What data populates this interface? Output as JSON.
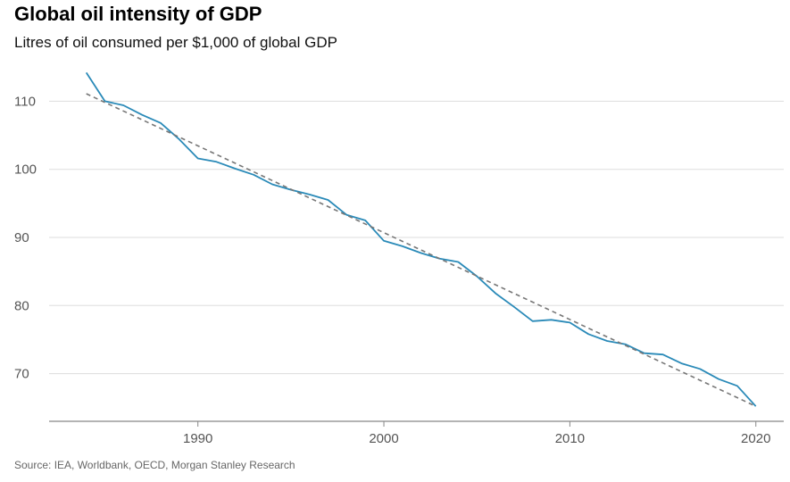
{
  "title": "Global oil intensity of GDP",
  "subtitle": "Litres of oil consumed per $1,000 of global GDP",
  "source": "Source: IEA, Worldbank, OECD, Morgan Stanley Research",
  "colors": {
    "series": "#2a8ab8",
    "trend": "#777777",
    "grid": "#dddddd",
    "axis": "#888888",
    "tick_text": "#555555"
  },
  "chart_data": {
    "type": "line",
    "title": "Global oil intensity of GDP",
    "subtitle": "Litres of oil consumed per $1,000 of global GDP",
    "xlabel": "",
    "ylabel": "",
    "xlim": [
      1982,
      2021.5
    ],
    "ylim": [
      63,
      117
    ],
    "x_ticks": [
      1990,
      2000,
      2010,
      2020
    ],
    "y_ticks": [
      70,
      80,
      90,
      100,
      110
    ],
    "grid": "horizontal",
    "legend": "none",
    "series": [
      {
        "style": "solid",
        "x": [
          1984,
          1985,
          1986,
          1987,
          1988,
          1989,
          1990,
          1991,
          1992,
          1993,
          1994,
          1995,
          1996,
          1997,
          1998,
          1999,
          2000,
          2001,
          2002,
          2003,
          2004,
          2005,
          2006,
          2007,
          2008,
          2009,
          2010,
          2011,
          2012,
          2013,
          2014,
          2015,
          2016,
          2017,
          2018,
          2019,
          2020
        ],
        "y": [
          114.2,
          110.0,
          109.4,
          108.0,
          106.8,
          104.4,
          101.6,
          101.1,
          100.1,
          99.2,
          97.8,
          97.0,
          96.3,
          95.5,
          93.3,
          92.5,
          89.5,
          88.7,
          87.7,
          86.9,
          86.4,
          84.3,
          81.8,
          79.8,
          77.7,
          77.9,
          77.5,
          75.8,
          74.8,
          74.3,
          73.0,
          72.8,
          71.5,
          70.7,
          69.2,
          68.2,
          65.2
        ]
      },
      {
        "style": "dashed",
        "x": [
          1984,
          2020
        ],
        "y": [
          111.1,
          65.2
        ]
      }
    ],
    "source": "Source: IEA, Worldbank, OECD, Morgan Stanley Research"
  }
}
